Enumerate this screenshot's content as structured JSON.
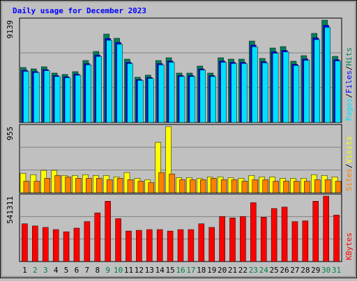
{
  "chart_data": [
    {
      "type": "bar",
      "title": "Daily usage for December 2023",
      "title_color": "#0000ff",
      "categories": [
        "1",
        "2",
        "3",
        "4",
        "5",
        "6",
        "7",
        "8",
        "9",
        "10",
        "11",
        "12",
        "13",
        "14",
        "15",
        "16",
        "17",
        "18",
        "19",
        "20",
        "21",
        "22",
        "23",
        "24",
        "25",
        "26",
        "27",
        "28",
        "29",
        "30",
        "31"
      ],
      "category_colors": [
        "#000000",
        "#008040",
        "#008040",
        "#000000",
        "#000000",
        "#000000",
        "#000000",
        "#000000",
        "#008040",
        "#008040",
        "#000000",
        "#000000",
        "#000000",
        "#000000",
        "#000000",
        "#008040",
        "#008040",
        "#000000",
        "#000000",
        "#000000",
        "#000000",
        "#000000",
        "#008040",
        "#008040",
        "#000000",
        "#000000",
        "#000000",
        "#000000",
        "#000000",
        "#008040",
        "#008040"
      ],
      "legend_separator": "/",
      "ylim": [
        0,
        9139
      ],
      "yticks": [
        9139
      ],
      "series": [
        {
          "name": "Hits",
          "color": "#00805c",
          "values": [
            4911,
            4787,
            4974,
            4414,
            4290,
            4538,
            5533,
            6341,
            7896,
            7523,
            5658,
            4041,
            4228,
            5533,
            5782,
            4414,
            4414,
            5036,
            4414,
            5782,
            5658,
            5658,
            7274,
            5720,
            6652,
            6777,
            5471,
            5968,
            7958,
            9139,
            5906
          ]
        },
        {
          "name": "Files",
          "color": "#0000ff",
          "values": [
            4665,
            4548,
            4725,
            4193,
            4076,
            4311,
            5256,
            6024,
            7501,
            7147,
            5375,
            3839,
            4017,
            5256,
            5493,
            4193,
            4193,
            4784,
            4193,
            5493,
            5375,
            5375,
            6910,
            5434,
            6319,
            6438,
            5197,
            5670,
            7560,
            8682,
            5611
          ]
        },
        {
          "name": "Pages",
          "color": "#00e0ff",
          "values": [
            4567,
            4452,
            4626,
            4105,
            3990,
            4220,
            5146,
            5897,
            7343,
            6996,
            5262,
            3758,
            3932,
            5146,
            5377,
            4105,
            4105,
            4683,
            4105,
            5377,
            5262,
            5262,
            6765,
            5320,
            6186,
            6303,
            5088,
            5550,
            7401,
            8499,
            5493
          ]
        }
      ]
    },
    {
      "type": "bar",
      "legend_separator": "/",
      "ylim": [
        0,
        955
      ],
      "yticks": [
        955
      ],
      "series": [
        {
          "name": "Visits",
          "color": "#ffff00",
          "values": [
            280,
            260,
            322,
            322,
            249,
            249,
            260,
            249,
            249,
            228,
            291,
            208,
            187,
            727,
            955,
            218,
            218,
            208,
            228,
            228,
            218,
            208,
            249,
            228,
            228,
            208,
            208,
            208,
            260,
            249,
            228
          ]
        },
        {
          "name": "Sites",
          "color": "#ff8000",
          "values": [
            166,
            166,
            208,
            249,
            228,
            208,
            208,
            208,
            187,
            208,
            187,
            166,
            145,
            291,
            270,
            187,
            187,
            187,
            208,
            187,
            187,
            166,
            187,
            187,
            166,
            166,
            166,
            166,
            187,
            187,
            166
          ]
        }
      ]
    },
    {
      "type": "bar",
      "ylim": [
        0,
        541311
      ],
      "yticks": [
        541311
      ],
      "series": [
        {
          "name": "KBytes",
          "color": "#ff0000",
          "values": [
            312759,
            294715,
            282686,
            264642,
            246599,
            276672,
            330803,
            402978,
            499212,
            354861,
            252613,
            258628,
            264642,
            264642,
            252613,
            264642,
            264642,
            312759,
            282686,
            372905,
            360876,
            372905,
            487183,
            366891,
            439066,
            451095,
            330803,
            336818,
            499212,
            541311,
            384934
          ]
        }
      ]
    }
  ]
}
